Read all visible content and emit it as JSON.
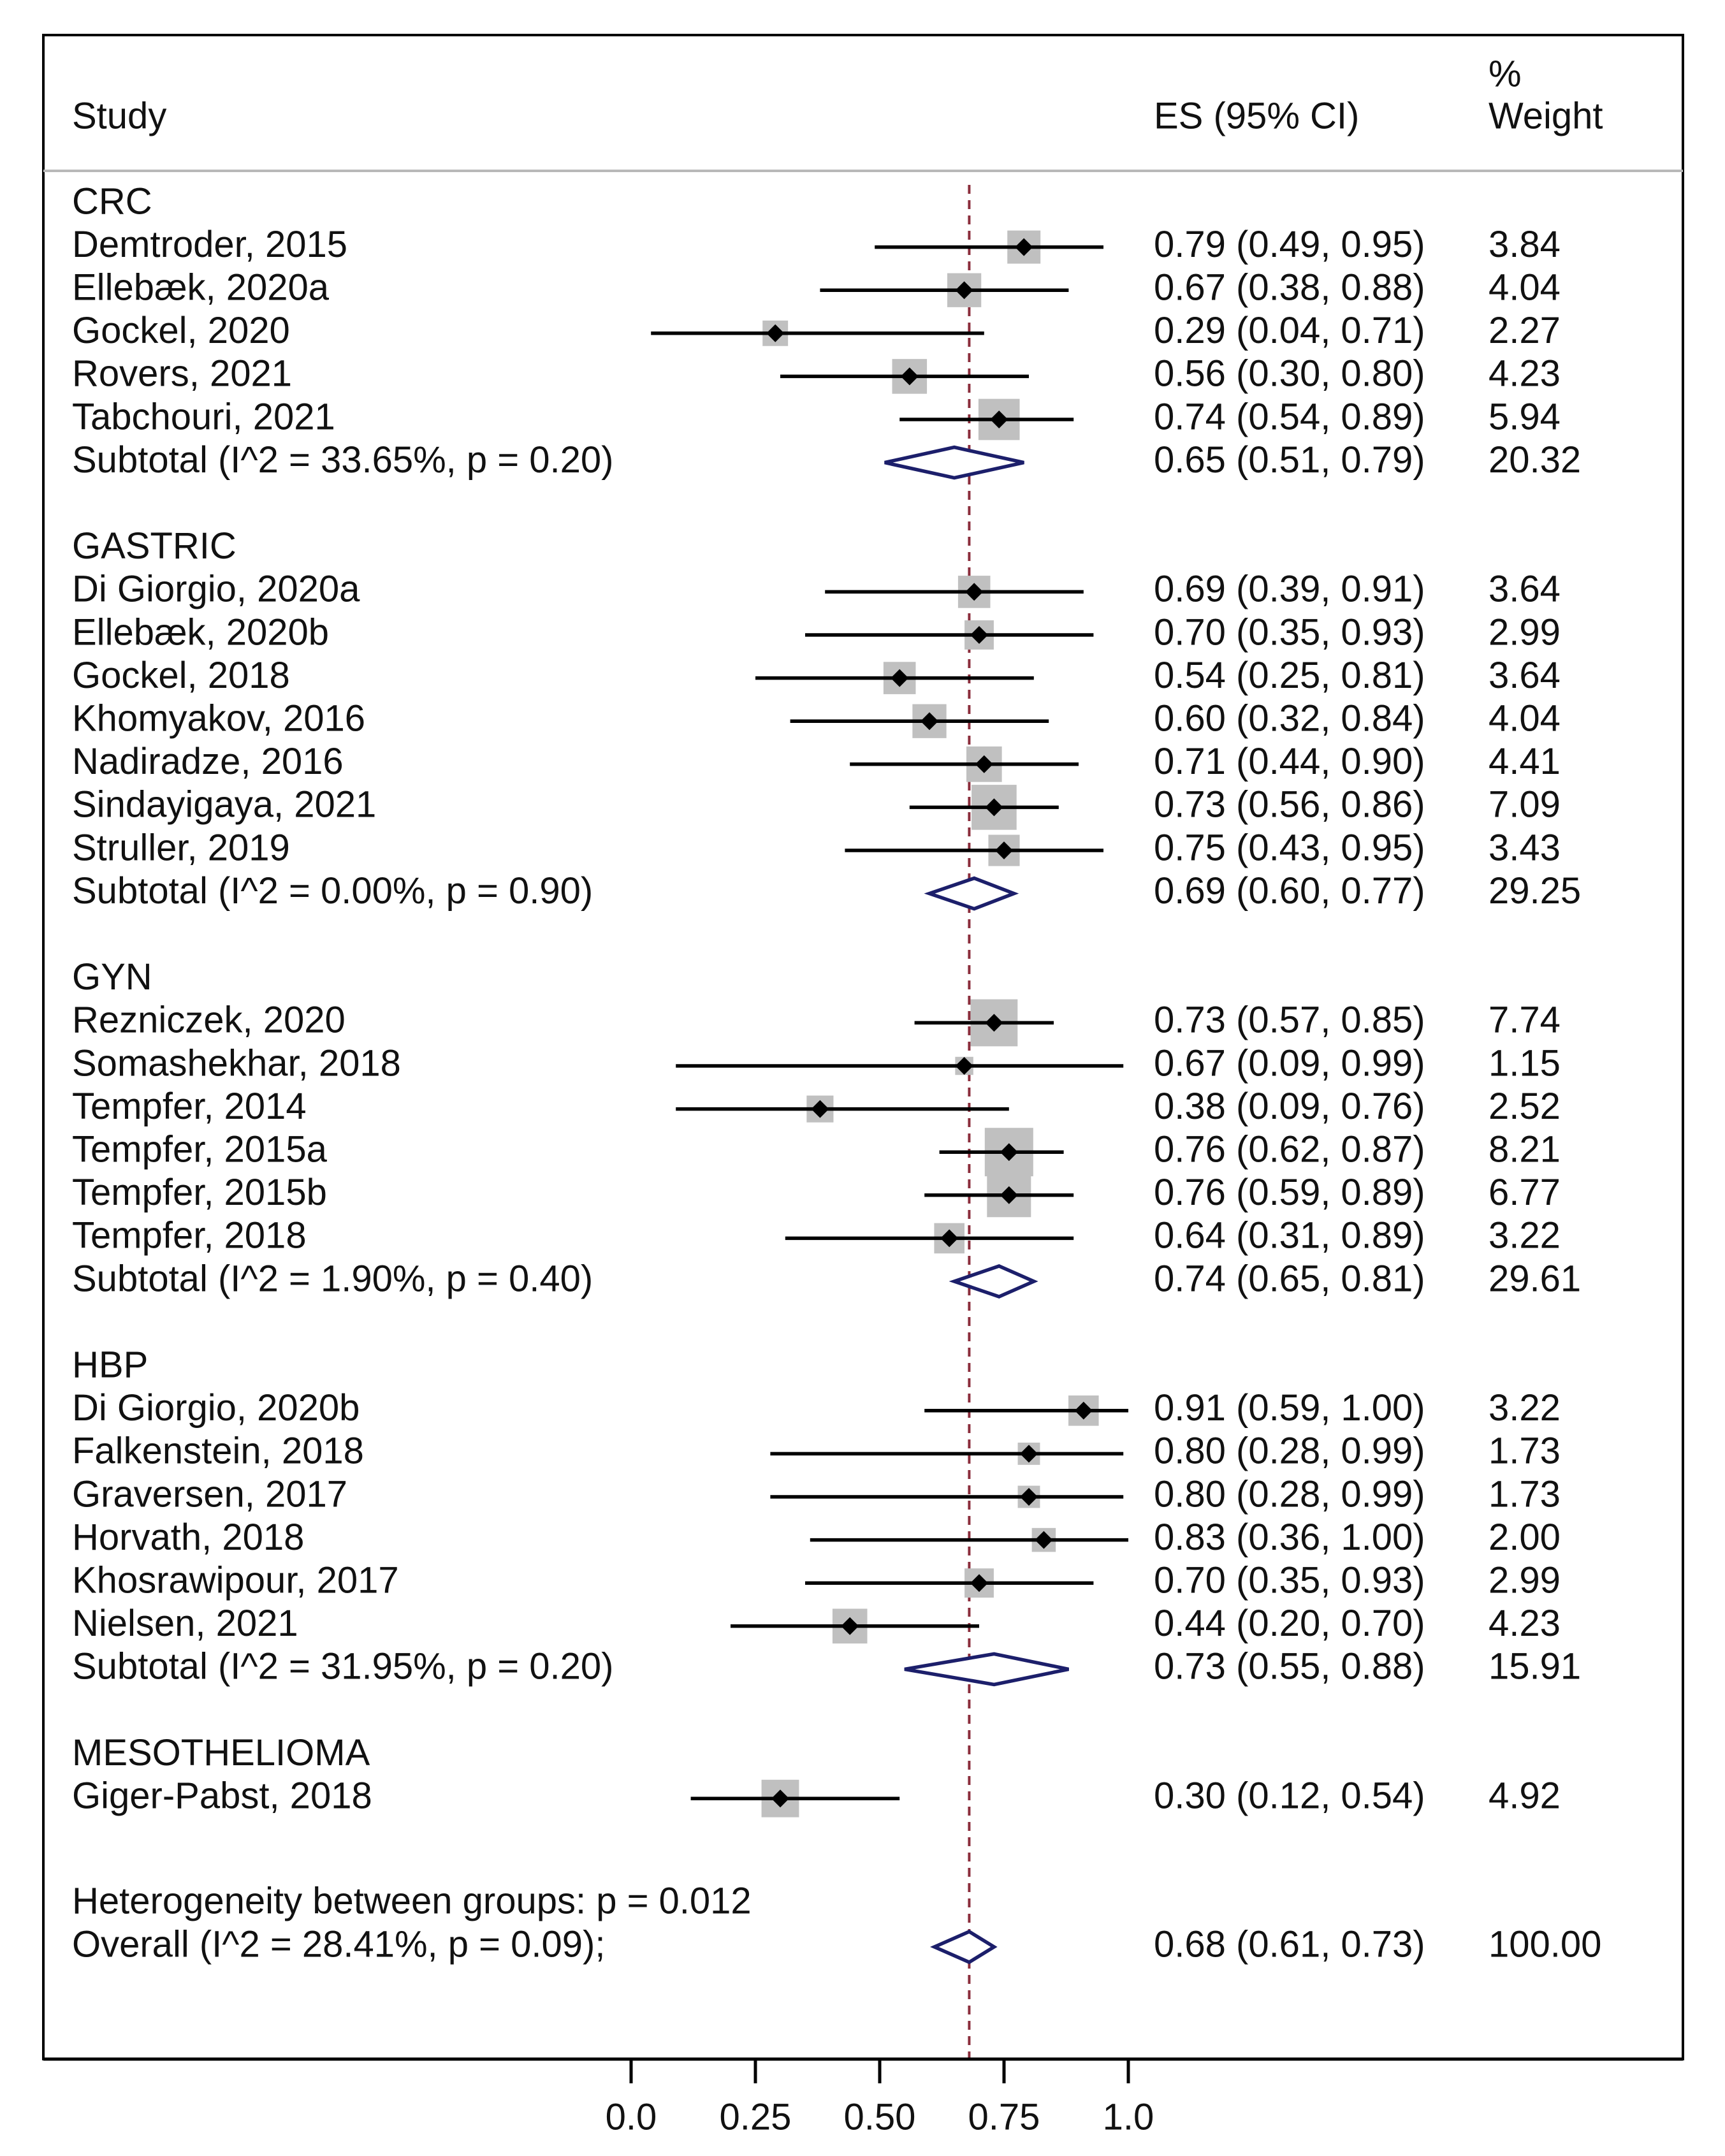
{
  "chart_data": {
    "type": "forest",
    "header": {
      "study": "Study",
      "es": "ES (95% CI)",
      "weight_pct": "%",
      "weight": "Weight"
    },
    "reference_line": 0.68,
    "xlim": [
      0.0,
      1.0
    ],
    "ticks": [
      {
        "value": 0.0,
        "label": "0.0"
      },
      {
        "value": 0.25,
        "label": "0.25"
      },
      {
        "value": 0.5,
        "label": "0.50"
      },
      {
        "value": 0.75,
        "label": "0.75"
      },
      {
        "value": 1.0,
        "label": "1.0"
      }
    ],
    "groups": [
      {
        "name": "CRC",
        "studies": [
          {
            "label": "Demtroder, 2015",
            "es": 0.79,
            "lo": 0.49,
            "hi": 0.95,
            "es_text": "0.79 (0.49, 0.95)",
            "weight": 3.84,
            "weight_text": "3.84"
          },
          {
            "label": "Ellebæk, 2020a",
            "es": 0.67,
            "lo": 0.38,
            "hi": 0.88,
            "es_text": "0.67 (0.38, 0.88)",
            "weight": 4.04,
            "weight_text": "4.04"
          },
          {
            "label": "Gockel, 2020",
            "es": 0.29,
            "lo": 0.04,
            "hi": 0.71,
            "es_text": "0.29 (0.04, 0.71)",
            "weight": 2.27,
            "weight_text": "2.27"
          },
          {
            "label": "Rovers, 2021",
            "es": 0.56,
            "lo": 0.3,
            "hi": 0.8,
            "es_text": "0.56 (0.30, 0.80)",
            "weight": 4.23,
            "weight_text": "4.23"
          },
          {
            "label": "Tabchouri, 2021",
            "es": 0.74,
            "lo": 0.54,
            "hi": 0.89,
            "es_text": "0.74 (0.54, 0.89)",
            "weight": 5.94,
            "weight_text": "5.94"
          }
        ],
        "subtotal": {
          "label": "Subtotal  (I^2 = 33.65%, p = 0.20)",
          "es": 0.65,
          "lo": 0.51,
          "hi": 0.79,
          "es_text": "0.65 (0.51, 0.79)",
          "weight": 20.32,
          "weight_text": "20.32"
        }
      },
      {
        "name": "GASTRIC",
        "studies": [
          {
            "label": "Di Giorgio, 2020a",
            "es": 0.69,
            "lo": 0.39,
            "hi": 0.91,
            "es_text": "0.69 (0.39, 0.91)",
            "weight": 3.64,
            "weight_text": "3.64"
          },
          {
            "label": "Ellebæk, 2020b",
            "es": 0.7,
            "lo": 0.35,
            "hi": 0.93,
            "es_text": "0.70 (0.35, 0.93)",
            "weight": 2.99,
            "weight_text": "2.99"
          },
          {
            "label": "Gockel, 2018",
            "es": 0.54,
            "lo": 0.25,
            "hi": 0.81,
            "es_text": "0.54 (0.25, 0.81)",
            "weight": 3.64,
            "weight_text": "3.64"
          },
          {
            "label": "Khomyakov, 2016",
            "es": 0.6,
            "lo": 0.32,
            "hi": 0.84,
            "es_text": "0.60 (0.32, 0.84)",
            "weight": 4.04,
            "weight_text": "4.04"
          },
          {
            "label": "Nadiradze, 2016",
            "es": 0.71,
            "lo": 0.44,
            "hi": 0.9,
            "es_text": "0.71 (0.44, 0.90)",
            "weight": 4.41,
            "weight_text": "4.41"
          },
          {
            "label": "Sindayigaya, 2021",
            "es": 0.73,
            "lo": 0.56,
            "hi": 0.86,
            "es_text": "0.73 (0.56, 0.86)",
            "weight": 7.09,
            "weight_text": "7.09"
          },
          {
            "label": "Struller, 2019",
            "es": 0.75,
            "lo": 0.43,
            "hi": 0.95,
            "es_text": "0.75 (0.43, 0.95)",
            "weight": 3.43,
            "weight_text": "3.43"
          }
        ],
        "subtotal": {
          "label": "Subtotal  (I^2 = 0.00%, p = 0.90)",
          "es": 0.69,
          "lo": 0.6,
          "hi": 0.77,
          "es_text": "0.69 (0.60, 0.77)",
          "weight": 29.25,
          "weight_text": "29.25"
        }
      },
      {
        "name": "GYN",
        "studies": [
          {
            "label": "Rezniczek, 2020",
            "es": 0.73,
            "lo": 0.57,
            "hi": 0.85,
            "es_text": "0.73 (0.57, 0.85)",
            "weight": 7.74,
            "weight_text": "7.74"
          },
          {
            "label": "Somashekhar, 2018",
            "es": 0.67,
            "lo": 0.09,
            "hi": 0.99,
            "es_text": "0.67 (0.09, 0.99)",
            "weight": 1.15,
            "weight_text": "1.15"
          },
          {
            "label": "Tempfer, 2014",
            "es": 0.38,
            "lo": 0.09,
            "hi": 0.76,
            "es_text": "0.38 (0.09, 0.76)",
            "weight": 2.52,
            "weight_text": "2.52"
          },
          {
            "label": "Tempfer, 2015a",
            "es": 0.76,
            "lo": 0.62,
            "hi": 0.87,
            "es_text": "0.76 (0.62, 0.87)",
            "weight": 8.21,
            "weight_text": "8.21"
          },
          {
            "label": "Tempfer, 2015b",
            "es": 0.76,
            "lo": 0.59,
            "hi": 0.89,
            "es_text": "0.76 (0.59, 0.89)",
            "weight": 6.77,
            "weight_text": "6.77"
          },
          {
            "label": "Tempfer, 2018",
            "es": 0.64,
            "lo": 0.31,
            "hi": 0.89,
            "es_text": "0.64 (0.31, 0.89)",
            "weight": 3.22,
            "weight_text": "3.22"
          }
        ],
        "subtotal": {
          "label": "Subtotal  (I^2 = 1.90%, p = 0.40)",
          "es": 0.74,
          "lo": 0.65,
          "hi": 0.81,
          "es_text": "0.74 (0.65, 0.81)",
          "weight": 29.61,
          "weight_text": "29.61"
        }
      },
      {
        "name": "HBP",
        "studies": [
          {
            "label": "Di Giorgio, 2020b",
            "es": 0.91,
            "lo": 0.59,
            "hi": 1.0,
            "es_text": "0.91 (0.59, 1.00)",
            "weight": 3.22,
            "weight_text": "3.22"
          },
          {
            "label": "Falkenstein, 2018",
            "es": 0.8,
            "lo": 0.28,
            "hi": 0.99,
            "es_text": "0.80 (0.28, 0.99)",
            "weight": 1.73,
            "weight_text": "1.73"
          },
          {
            "label": "Graversen, 2017",
            "es": 0.8,
            "lo": 0.28,
            "hi": 0.99,
            "es_text": "0.80 (0.28, 0.99)",
            "weight": 1.73,
            "weight_text": "1.73"
          },
          {
            "label": "Horvath, 2018",
            "es": 0.83,
            "lo": 0.36,
            "hi": 1.0,
            "es_text": "0.83 (0.36, 1.00)",
            "weight": 2.0,
            "weight_text": "2.00"
          },
          {
            "label": "Khosrawipour, 2017",
            "es": 0.7,
            "lo": 0.35,
            "hi": 0.93,
            "es_text": "0.70 (0.35, 0.93)",
            "weight": 2.99,
            "weight_text": "2.99"
          },
          {
            "label": "Nielsen, 2021",
            "es": 0.44,
            "lo": 0.2,
            "hi": 0.7,
            "es_text": "0.44 (0.20, 0.70)",
            "weight": 4.23,
            "weight_text": "4.23"
          }
        ],
        "subtotal": {
          "label": "Subtotal  (I^2 = 31.95%, p = 0.20)",
          "es": 0.73,
          "lo": 0.55,
          "hi": 0.88,
          "es_text": "0.73 (0.55, 0.88)",
          "weight": 15.91,
          "weight_text": "15.91"
        }
      },
      {
        "name": "MESOTHELIOMA",
        "studies": [
          {
            "label": "Giger-Pabst, 2018",
            "es": 0.3,
            "lo": 0.12,
            "hi": 0.54,
            "es_text": "0.30 (0.12, 0.54)",
            "weight": 4.92,
            "weight_text": "4.92"
          }
        ],
        "subtotal": null
      }
    ],
    "heterogeneity": "Heterogeneity between groups: p = 0.012",
    "overall": {
      "label": "Overall  (I^2 = 28.41%, p = 0.09);",
      "es": 0.68,
      "lo": 0.61,
      "hi": 0.73,
      "es_text": "0.68 (0.61, 0.73)",
      "weight": 100.0,
      "weight_text": "100.00"
    },
    "colors": {
      "marker": "#000000",
      "weight_box": "#c0c0c0",
      "diamond": "#1c1f6b",
      "reference_line": "#8b2e3c",
      "frame": "#000000",
      "header_rule": "#b8b8b8"
    }
  }
}
